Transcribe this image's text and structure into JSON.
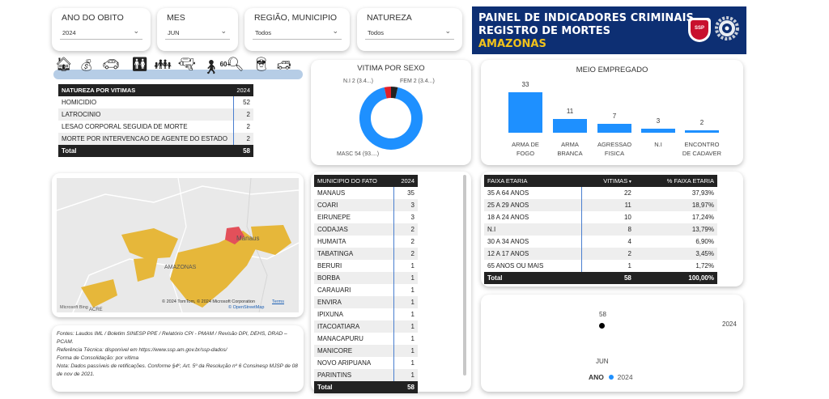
{
  "filters": [
    {
      "title": "ANO DO OBITO",
      "value": "2024"
    },
    {
      "title": "MES",
      "value": "JUN"
    },
    {
      "title": "REGIÃO, MUNICIPIO",
      "value": "Todos"
    },
    {
      "title": "NATUREZA",
      "value": "Todos"
    }
  ],
  "banner": {
    "line1": "PAINEL DE INDICADORES CRIMINAIS",
    "line2": "REGISTRO DE MORTES",
    "line3": "AMAZONAS",
    "logo_badge_text": "SSP"
  },
  "icons": [
    "home-icon",
    "money-bag-icon",
    "car-icon",
    "couple-icon",
    "children-icon",
    "weapon-icon",
    "elderly-60-icon",
    "search-person-icon",
    "police-icon",
    "crashed-car-icon"
  ],
  "icon_60_label": "60+",
  "natureza_table": {
    "headers": [
      "NATUREZA POR VITIMAS",
      "2024"
    ],
    "rows": [
      {
        "label": "HOMICIDIO",
        "value": "52"
      },
      {
        "label": "LATROCINIO",
        "value": "2"
      },
      {
        "label": "LESAO CORPORAL SEGUIDA DE MORTE",
        "value": "2"
      },
      {
        "label": "MORTE POR INTERVENCAO DE AGENTE DO ESTADO",
        "value": "2"
      }
    ],
    "total_label": "Total",
    "total_value": "58"
  },
  "vitima_sexo": {
    "title": "VITIMA POR SEXO",
    "label_ni": "N.I 2 (3.4...)",
    "label_fem": "FEM 2 (3.4...)",
    "label_masc": "MASC 54 (93....)"
  },
  "meio_empregado": {
    "title": "MEIO EMPREGADO",
    "bars": [
      {
        "label1": "ARMA DE",
        "label2": "FOGO",
        "value": "33"
      },
      {
        "label1": "ARMA",
        "label2": "BRANCA",
        "value": "11"
      },
      {
        "label1": "AGRESSAO",
        "label2": "FISICA",
        "value": "7"
      },
      {
        "label1": "N.I",
        "label2": "",
        "value": "3"
      },
      {
        "label1": "ENCONTRO",
        "label2": "DE CADAVER",
        "value": "2"
      }
    ]
  },
  "map": {
    "label_manaus": "Manaus",
    "label_amazonas": "AMAZONAS",
    "label_acre": "ACRE",
    "attribution": "© 2024 TomTom, © 2024 Microsoft Corporation",
    "osm": "© OpenStreetMap",
    "terms": "Terms",
    "bing": "Microsoft Bing"
  },
  "notes": {
    "fontes": "Fontes: Laudos IML / Boletim SINESP PPE / Relatório CPI - PMAM / Revisão DPI, DEHS, DRAD – PCAM.",
    "referencia": "Referência Técnica: disponível em https://www.ssp.am.gov.br/ssp-dados/",
    "forma": "Forma de Consolidação: por vítima",
    "nota": "Nota: Dados passíveis de retificações. Conforme §4º, Art. 5º da Resolução nº 6 Consinesp MJSP de 08 de nov de 2021."
  },
  "municipio_table": {
    "headers": [
      "MUNICIPIO DO FATO",
      "2024"
    ],
    "rows": [
      {
        "label": "MANAUS",
        "value": "35"
      },
      {
        "label": "COARI",
        "value": "3"
      },
      {
        "label": "EIRUNEPE",
        "value": "3"
      },
      {
        "label": "CODAJAS",
        "value": "2"
      },
      {
        "label": "HUMAITA",
        "value": "2"
      },
      {
        "label": "TABATINGA",
        "value": "2"
      },
      {
        "label": "BERURI",
        "value": "1"
      },
      {
        "label": "BORBA",
        "value": "1"
      },
      {
        "label": "CARAUARI",
        "value": "1"
      },
      {
        "label": "ENVIRA",
        "value": "1"
      },
      {
        "label": "IPIXUNA",
        "value": "1"
      },
      {
        "label": "ITACOATIARA",
        "value": "1"
      },
      {
        "label": "MANACAPURU",
        "value": "1"
      },
      {
        "label": "MANICORE",
        "value": "1"
      },
      {
        "label": "NOVO ARIPUANA",
        "value": "1"
      },
      {
        "label": "PARINTINS",
        "value": "1"
      }
    ],
    "total_label": "Total",
    "total_value": "58"
  },
  "faixa_table": {
    "headers": [
      "FAIXA ETARIA",
      "VITIMAS",
      "% FAIXA ETARIA"
    ],
    "rows": [
      {
        "label": "35 A 64 ANOS",
        "value": "22",
        "pct": "37,93%"
      },
      {
        "label": "25 A 29 ANOS",
        "value": "11",
        "pct": "18,97%"
      },
      {
        "label": "18 A 24 ANOS",
        "value": "10",
        "pct": "17,24%"
      },
      {
        "label": "N.I",
        "value": "8",
        "pct": "13,79%"
      },
      {
        "label": "30 A 34 ANOS",
        "value": "4",
        "pct": "6,90%"
      },
      {
        "label": "12 A 17 ANOS",
        "value": "2",
        "pct": "3,45%"
      },
      {
        "label": "65 ANOS OU MAIS",
        "value": "1",
        "pct": "1,72%"
      }
    ],
    "total_label": "Total",
    "total_value": "58",
    "total_pct": "100,00%"
  },
  "scatter": {
    "value_label": "58",
    "x_label": "JUN",
    "right_label": "2024",
    "legend_title": "ANO",
    "legend_item": "2024"
  },
  "chart_data": [
    {
      "type": "pie",
      "title": "VITIMA POR SEXO",
      "categories": [
        "MASC",
        "FEM",
        "N.I"
      ],
      "values": [
        54,
        2,
        2
      ],
      "colors": [
        "#1e90ff",
        "#222222",
        "#e0202a"
      ]
    },
    {
      "type": "bar",
      "title": "MEIO EMPREGADO",
      "categories": [
        "ARMA DE FOGO",
        "ARMA BRANCA",
        "AGRESSAO FISICA",
        "N.I",
        "ENCONTRO DE CADAVER"
      ],
      "values": [
        33,
        11,
        7,
        3,
        2
      ],
      "color": "#1e90ff"
    },
    {
      "type": "scatter",
      "categories": [
        "JUN"
      ],
      "series": [
        {
          "name": "2024",
          "values": [
            58
          ]
        }
      ]
    }
  ],
  "colors": {
    "accent": "#1e90ff",
    "banner": "#0d2f73",
    "banner_yellow": "#f1c21b",
    "map_fill": "#e6b73a",
    "map_highlight": "#e3505a"
  }
}
